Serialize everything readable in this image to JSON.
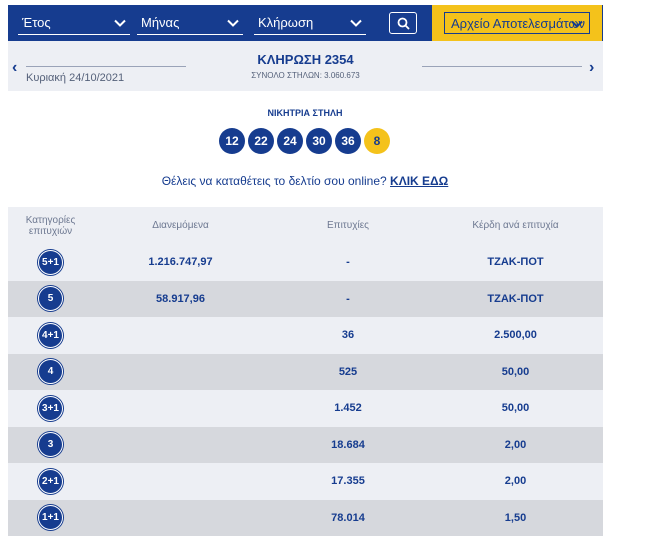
{
  "filters": {
    "year_label": "Έτος",
    "month_label": "Μήνας",
    "draw_label": "Κλήρωση",
    "archive_label": "Αρχείο Αποτελεσμάτων"
  },
  "draw": {
    "date": "Κυριακή 24/10/2021",
    "title": "ΚΛΗΡΩΣΗ 2354",
    "total_columns": "ΣΥΝΟΛΟ ΣΤΗΛΩΝ: 3.060.673",
    "prev_arrow": "‹",
    "next_arrow": "›"
  },
  "winning": {
    "label": "ΝΙΚΗΤΡΙΑ ΣΤΗΛΗ",
    "numbers": [
      "12",
      "22",
      "24",
      "30",
      "36"
    ],
    "bonus": "8"
  },
  "cta": {
    "text": "Θέλεις να καταθέτεις το δελτίο σου online?",
    "link": "ΚΛΙΚ ΕΔΩ"
  },
  "table": {
    "headers": {
      "category_line1": "Κατηγορίες",
      "category_line2": "επιτυχιών",
      "distributed": "Διανεμόμενα",
      "winners": "Επιτυχίες",
      "prize": "Κέρδη ανά επιτυχία"
    },
    "rows": [
      {
        "cat": "5+1",
        "distributed": "1.216.747,97",
        "winners": "-",
        "prize": "ΤΖΑΚ-ΠΟΤ"
      },
      {
        "cat": "5",
        "distributed": "58.917,96",
        "winners": "-",
        "prize": "ΤΖΑΚ-ΠΟΤ"
      },
      {
        "cat": "4+1",
        "distributed": "",
        "winners": "36",
        "prize": "2.500,00"
      },
      {
        "cat": "4",
        "distributed": "",
        "winners": "525",
        "prize": "50,00"
      },
      {
        "cat": "3+1",
        "distributed": "",
        "winners": "1.452",
        "prize": "50,00"
      },
      {
        "cat": "3",
        "distributed": "",
        "winners": "18.684",
        "prize": "2,00"
      },
      {
        "cat": "2+1",
        "distributed": "",
        "winners": "17.355",
        "prize": "2,00"
      },
      {
        "cat": "1+1",
        "distributed": "",
        "winners": "78.014",
        "prize": "1,50"
      }
    ]
  },
  "colors": {
    "primary": "#163c8f",
    "accent": "#f4c21b",
    "row_light": "#edeff4",
    "row_dark": "#d6d8dd"
  }
}
